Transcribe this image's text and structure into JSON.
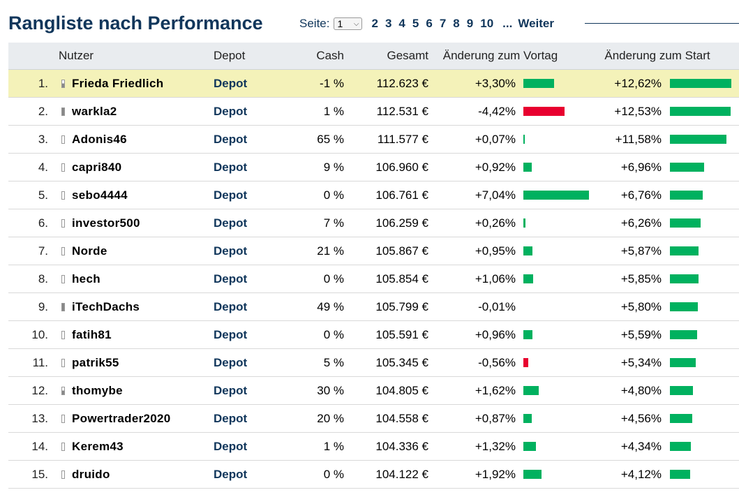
{
  "title": "Rangliste nach Performance",
  "pager": {
    "label": "Seite:",
    "selected": "1",
    "pages": [
      "2",
      "3",
      "4",
      "5",
      "6",
      "7",
      "8",
      "9",
      "10"
    ],
    "ellipsis": "...",
    "next": "Weiter"
  },
  "columns": {
    "user": "Nutzer",
    "depot": "Depot",
    "cash": "Cash",
    "total": "Gesamt",
    "change_prev": "Änderung zum Vortag",
    "change_start": "Änderung zum Start"
  },
  "colors": {
    "positive": "#00b15f",
    "negative": "#e8002f",
    "highlight": "#f4f2b9",
    "brand": "#10365b"
  },
  "rows": [
    {
      "rank": "1.",
      "status": "partial",
      "user": "Frieda Friedlich",
      "depot": "Depot",
      "cash": "-1 %",
      "total": "112.623 €",
      "change_prev": "+3,30%",
      "prev_val": 3.3,
      "change_start": "+12,62%",
      "start_val": 12.62,
      "highlight": true
    },
    {
      "rank": "2.",
      "status": "full",
      "user": "warkla2",
      "depot": "Depot",
      "cash": "1 %",
      "total": "112.531 €",
      "change_prev": "-4,42%",
      "prev_val": -4.42,
      "change_start": "+12,53%",
      "start_val": 12.53
    },
    {
      "rank": "3.",
      "status": "empty",
      "user": "Adonis46",
      "depot": "Depot",
      "cash": "65 %",
      "total": "111.577 €",
      "change_prev": "+0,07%",
      "prev_val": 0.07,
      "change_start": "+11,58%",
      "start_val": 11.58
    },
    {
      "rank": "4.",
      "status": "empty",
      "user": "capri840",
      "depot": "Depot",
      "cash": "9 %",
      "total": "106.960 €",
      "change_prev": "+0,92%",
      "prev_val": 0.92,
      "change_start": "+6,96%",
      "start_val": 6.96
    },
    {
      "rank": "5.",
      "status": "empty",
      "user": "sebo4444",
      "depot": "Depot",
      "cash": "0 %",
      "total": "106.761 €",
      "change_prev": "+7,04%",
      "prev_val": 7.04,
      "change_start": "+6,76%",
      "start_val": 6.76
    },
    {
      "rank": "6.",
      "status": "empty",
      "user": "investor500",
      "depot": "Depot",
      "cash": "7 %",
      "total": "106.259 €",
      "change_prev": "+0,26%",
      "prev_val": 0.26,
      "change_start": "+6,26%",
      "start_val": 6.26
    },
    {
      "rank": "7.",
      "status": "empty",
      "user": "Norde",
      "depot": "Depot",
      "cash": "21 %",
      "total": "105.867 €",
      "change_prev": "+0,95%",
      "prev_val": 0.95,
      "change_start": "+5,87%",
      "start_val": 5.87
    },
    {
      "rank": "8.",
      "status": "empty",
      "user": "hech",
      "depot": "Depot",
      "cash": "0 %",
      "total": "105.854 €",
      "change_prev": "+1,06%",
      "prev_val": 1.06,
      "change_start": "+5,85%",
      "start_val": 5.85
    },
    {
      "rank": "9.",
      "status": "full",
      "user": "iTechDachs",
      "depot": "Depot",
      "cash": "49 %",
      "total": "105.799 €",
      "change_prev": "-0,01%",
      "prev_val": -0.01,
      "change_start": "+5,80%",
      "start_val": 5.8
    },
    {
      "rank": "10.",
      "status": "empty",
      "user": "fatih81",
      "depot": "Depot",
      "cash": "0 %",
      "total": "105.591 €",
      "change_prev": "+0,96%",
      "prev_val": 0.96,
      "change_start": "+5,59%",
      "start_val": 5.59
    },
    {
      "rank": "11.",
      "status": "empty",
      "user": "patrik55",
      "depot": "Depot",
      "cash": "5 %",
      "total": "105.345 €",
      "change_prev": "-0,56%",
      "prev_val": -0.56,
      "change_start": "+5,34%",
      "start_val": 5.34
    },
    {
      "rank": "12.",
      "status": "partial",
      "user": "thomybe",
      "depot": "Depot",
      "cash": "30 %",
      "total": "104.805 €",
      "change_prev": "+1,62%",
      "prev_val": 1.62,
      "change_start": "+4,80%",
      "start_val": 4.8
    },
    {
      "rank": "13.",
      "status": "empty",
      "user": "Powertrader2020",
      "depot": "Depot",
      "cash": "20 %",
      "total": "104.558 €",
      "change_prev": "+0,87%",
      "prev_val": 0.87,
      "change_start": "+4,56%",
      "start_val": 4.56
    },
    {
      "rank": "14.",
      "status": "empty",
      "user": "Kerem43",
      "depot": "Depot",
      "cash": "1 %",
      "total": "104.336 €",
      "change_prev": "+1,32%",
      "prev_val": 1.32,
      "change_start": "+4,34%",
      "start_val": 4.34
    },
    {
      "rank": "15.",
      "status": "empty",
      "user": "druido",
      "depot": "Depot",
      "cash": "0 %",
      "total": "104.122 €",
      "change_prev": "+1,92%",
      "prev_val": 1.92,
      "change_start": "+4,12%",
      "start_val": 4.12
    }
  ]
}
